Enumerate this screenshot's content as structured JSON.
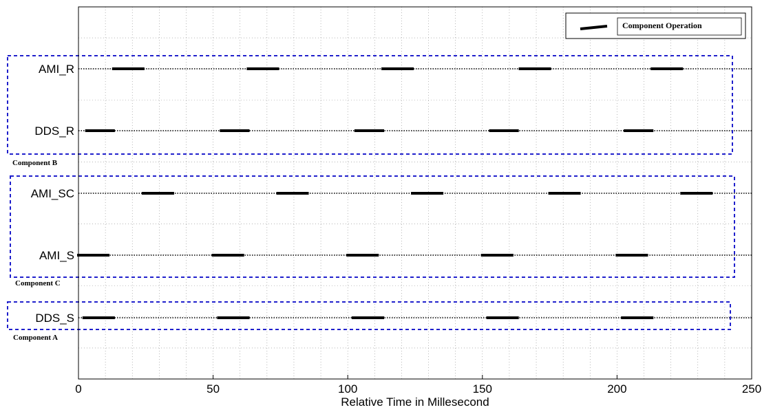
{
  "chart_data": {
    "type": "timeline",
    "xlabel": "Relative Time in Millesecond",
    "xlim": [
      0,
      250
    ],
    "xticks": [
      0,
      50,
      100,
      150,
      200,
      250
    ],
    "grid": true,
    "legend": {
      "label": "Component Operation",
      "placement": "top-right"
    },
    "rows": [
      {
        "label": "AMI_R",
        "intervals": [
          [
            13,
            24
          ],
          [
            63,
            74
          ],
          [
            113,
            124
          ],
          [
            164,
            175
          ],
          [
            213,
            224
          ]
        ]
      },
      {
        "label": "DDS_R",
        "intervals": [
          [
            3,
            13
          ],
          [
            53,
            63
          ],
          [
            103,
            113
          ],
          [
            153,
            163
          ],
          [
            203,
            213
          ]
        ]
      },
      {
        "label": "AMI_SC",
        "intervals": [
          [
            24,
            35
          ],
          [
            74,
            85
          ],
          [
            124,
            135
          ],
          [
            175,
            186
          ],
          [
            224,
            235
          ]
        ]
      },
      {
        "label": "AMI_S",
        "intervals": [
          [
            0,
            11
          ],
          [
            50,
            61
          ],
          [
            100,
            111
          ],
          [
            150,
            161
          ],
          [
            200,
            211
          ]
        ]
      },
      {
        "label": "DDS_S",
        "intervals": [
          [
            2,
            13
          ],
          [
            52,
            63
          ],
          [
            102,
            113
          ],
          [
            152,
            163
          ],
          [
            202,
            213
          ]
        ]
      }
    ],
    "groups": [
      {
        "label": "Component B",
        "rows": [
          "AMI_R",
          "DDS_R"
        ]
      },
      {
        "label": "Component C",
        "rows": [
          "AMI_SC",
          "AMI_S"
        ]
      },
      {
        "label": "Component A",
        "rows": [
          "DDS_S"
        ]
      }
    ],
    "colors": {
      "bar": "#000000",
      "group_box": "#1f1fcc",
      "grid": "#888888"
    }
  }
}
